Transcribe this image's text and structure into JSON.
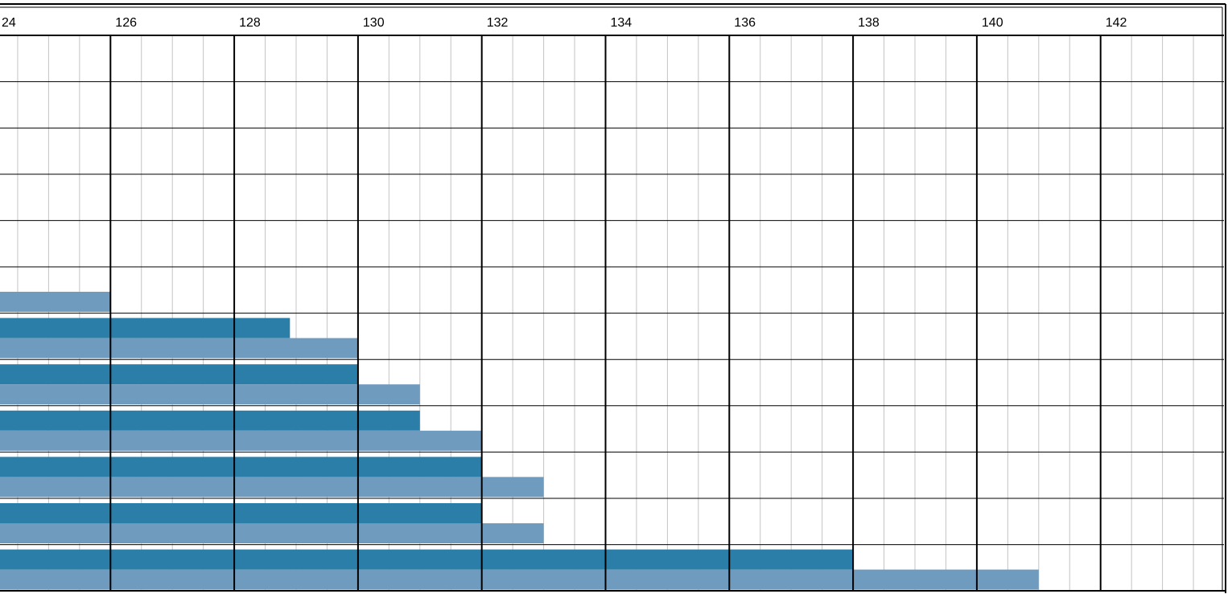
{
  "chart_data": {
    "type": "bar",
    "orientation": "horizontal",
    "x_ticks": [
      "24",
      "126",
      "128",
      "130",
      "132",
      "134",
      "136",
      "138",
      "140",
      "142"
    ],
    "xlim": [
      124,
      142
    ],
    "series": [
      {
        "color": "#2b7ea8",
        "values": [
          null,
          null,
          null,
          null,
          null,
          null,
          128.9,
          130,
          131,
          132,
          132,
          138
        ]
      },
      {
        "color": "#6f9bbf",
        "values": [
          null,
          null,
          null,
          null,
          null,
          126,
          130,
          131,
          132,
          133,
          133,
          141
        ]
      }
    ],
    "grid": true,
    "legend": "none"
  }
}
